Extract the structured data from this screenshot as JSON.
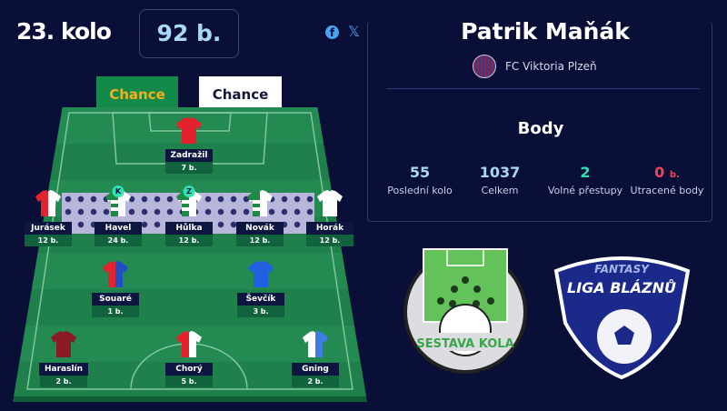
{
  "header": {
    "round": "23. kolo",
    "points": "92 b.",
    "social": [
      "facebook-icon",
      "x-icon"
    ]
  },
  "sponsors": [
    "Chance",
    "Chance"
  ],
  "lineup": [
    {
      "name": "Zadražil",
      "points": "7 b.",
      "colors": [
        "#e3222d",
        "#e3222d"
      ]
    },
    {
      "name": "Jurásek",
      "points": "12 b.",
      "colors": [
        "#e3222d",
        "#ffffff"
      ]
    },
    {
      "name": "Havel",
      "points": "24 b.",
      "colors": [
        "#1c8a45",
        "#ffffff"
      ],
      "badge": "K"
    },
    {
      "name": "Hůlka",
      "points": "12 b.",
      "colors": [
        "#1c8a45",
        "#ffffff"
      ],
      "badge": "Z"
    },
    {
      "name": "Novák",
      "points": "12 b.",
      "colors": [
        "#1c8a45",
        "#ffffff"
      ]
    },
    {
      "name": "Horák",
      "points": "12 b.",
      "colors": [
        "#ffffff",
        "#ffffff"
      ]
    },
    {
      "name": "Souaré",
      "points": "1 b.",
      "colors": [
        "#e3222d",
        "#1f4fc4"
      ]
    },
    {
      "name": "Ševčík",
      "points": "3 b.",
      "colors": [
        "#1f5fe0",
        "#1f5fe0"
      ]
    },
    {
      "name": "Haraslín",
      "points": "2 b.",
      "colors": [
        "#8a1b24",
        "#8a1b24"
      ]
    },
    {
      "name": "Chorý",
      "points": "5 b.",
      "colors": [
        "#e3222d",
        "#ffffff"
      ]
    },
    {
      "name": "Gning",
      "points": "2 b.",
      "colors": [
        "#ffffff",
        "#3d7ee0"
      ]
    }
  ],
  "manager": {
    "name": "Patrik Maňák",
    "club": "FC Viktoria Plzeň"
  },
  "stats": {
    "title": "Body",
    "items": [
      {
        "value": "55",
        "unit": "",
        "label": "Poslední kolo",
        "color": "#a9d7f5"
      },
      {
        "value": "1037",
        "unit": "",
        "label": "Celkem",
        "color": "#a9d7f5"
      },
      {
        "value": "2",
        "unit": "",
        "label": "Volné přestupy",
        "color": "#2de3b2"
      },
      {
        "value": "0",
        "unit": "b.",
        "label": "Utracené body",
        "color": "#ef4359"
      }
    ]
  },
  "logos": {
    "left": "SESTAVA KOLA",
    "right_top": "FANTASY",
    "right_bottom": "LIGA BLÁZNŮ"
  }
}
